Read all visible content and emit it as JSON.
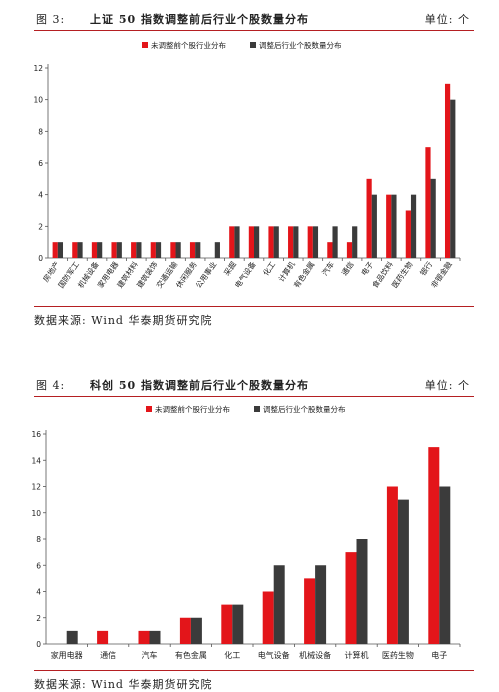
{
  "figures": [
    {
      "number": "图 3:",
      "title": "上证 50 指数调整前后行业个股数量分布",
      "unit": "单位: 个",
      "source": "数据来源: Wind 华泰期货研究院"
    },
    {
      "number": "图 4:",
      "title": "科创 50 指数调整前后行业个股数量分布",
      "unit": "单位: 个",
      "source": "数据来源: Wind 华泰期货研究院"
    }
  ],
  "colors": {
    "before": "#e3151a",
    "after": "#3b3b3b",
    "rule": "#b51f22"
  },
  "chart_data": [
    {
      "type": "bar",
      "title": "",
      "categories": [
        "房地产",
        "国防军工",
        "机械设备",
        "家用电器",
        "建筑材料",
        "建筑装饰",
        "交通运输",
        "休闲服务",
        "公用事业",
        "采掘",
        "电气设备",
        "化工",
        "计算机",
        "有色金属",
        "汽车",
        "通信",
        "电子",
        "食品饮料",
        "医药生物",
        "银行",
        "非银金融"
      ],
      "series": [
        {
          "name": "未调整前个股行业分布",
          "values": [
            1,
            1,
            1,
            1,
            1,
            1,
            1,
            1,
            0,
            2,
            2,
            2,
            2,
            2,
            1,
            1,
            5,
            4,
            3,
            7,
            11
          ]
        },
        {
          "name": "调整后行业个股数量分布",
          "values": [
            1,
            1,
            1,
            1,
            1,
            1,
            1,
            1,
            1,
            2,
            2,
            2,
            2,
            2,
            2,
            2,
            4,
            4,
            4,
            5,
            10
          ]
        }
      ],
      "ylim": [
        0,
        12
      ],
      "yticks": [
        0,
        2,
        4,
        6,
        8,
        10,
        12
      ],
      "xlabel": "",
      "ylabel": "",
      "legend": "top-right",
      "x_tick_rotation": "rotated"
    },
    {
      "type": "bar",
      "title": "",
      "categories": [
        "家用电器",
        "通信",
        "汽车",
        "有色金属",
        "化工",
        "电气设备",
        "机械设备",
        "计算机",
        "医药生物",
        "电子"
      ],
      "series": [
        {
          "name": "未调整前个股行业分布",
          "values": [
            0,
            1,
            1,
            2,
            3,
            4,
            5,
            7,
            12,
            15
          ]
        },
        {
          "name": "调整后行业个股数量分布",
          "values": [
            1,
            0,
            1,
            2,
            3,
            6,
            6,
            8,
            11,
            12
          ]
        }
      ],
      "ylim": [
        0,
        16
      ],
      "yticks": [
        0,
        2,
        4,
        6,
        8,
        10,
        12,
        14,
        16
      ],
      "xlabel": "",
      "ylabel": "",
      "legend": "top-right",
      "x_tick_rotation": "horizontal"
    }
  ]
}
